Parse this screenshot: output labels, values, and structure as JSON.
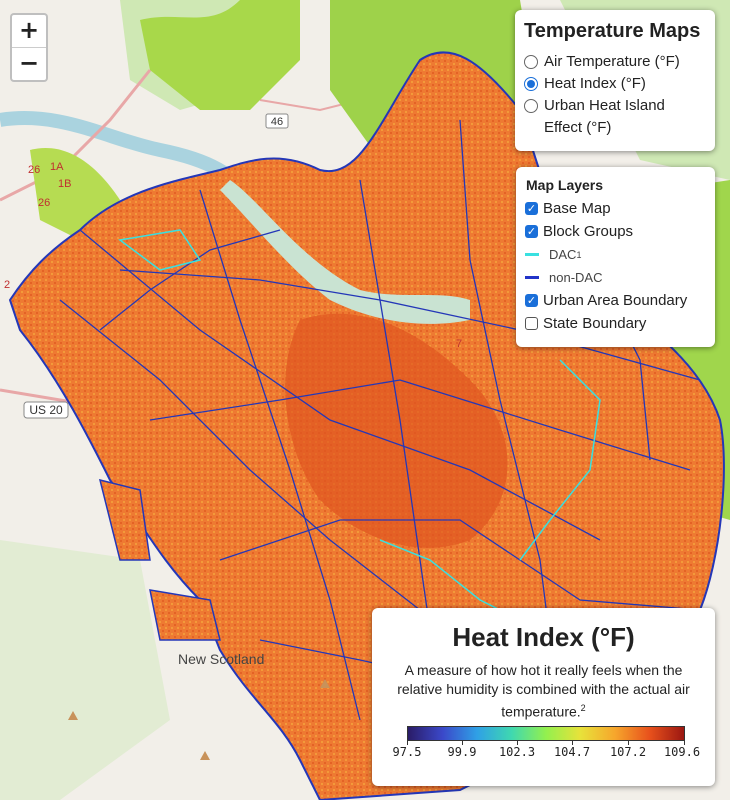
{
  "map": {
    "labels": [
      {
        "id": "rt46",
        "text": "46"
      },
      {
        "id": "us20",
        "text": "US 20"
      },
      {
        "id": "new-scotland",
        "text": "New Scotland"
      },
      {
        "id": "e26",
        "text": "26"
      },
      {
        "id": "e1a",
        "text": "1A"
      },
      {
        "id": "e1b",
        "text": "1B"
      },
      {
        "id": "e26b",
        "text": "26"
      },
      {
        "id": "e2",
        "text": "2"
      },
      {
        "id": "e7",
        "text": "7"
      }
    ]
  },
  "zoom": {
    "in": "+",
    "out": "−"
  },
  "temperature_maps": {
    "title": "Temperature Maps",
    "options": [
      {
        "label": "Air Temperature (°F)",
        "selected": false
      },
      {
        "label": "Heat Index (°F)",
        "selected": true
      },
      {
        "label": "Urban Heat Island Effect (°F)",
        "selected": false
      }
    ]
  },
  "map_layers": {
    "title": "Map Layers",
    "base_map": {
      "label": "Base Map",
      "checked": true
    },
    "block_groups": {
      "label": "Block Groups",
      "checked": true
    },
    "dac": {
      "label": "DAC",
      "sup": "1",
      "color": "#39e0e0"
    },
    "non_dac": {
      "label": "non-DAC",
      "color": "#2233c8"
    },
    "urban_area_boundary": {
      "label": "Urban Area Boundary",
      "checked": true
    },
    "state_boundary": {
      "label": "State Boundary",
      "checked": false
    }
  },
  "legend": {
    "title": "Heat Index (°F)",
    "description": "A measure of how hot it really feels when the relative humidity is combined with the actual air temperature.",
    "footnote": "2",
    "ticks": [
      "97.5",
      "99.9",
      "102.3",
      "104.7",
      "107.2",
      "109.6"
    ],
    "range": [
      97.5,
      109.6
    ],
    "colors": [
      "#2a1c67",
      "#3b48c9",
      "#2fa0e6",
      "#3fd8b0",
      "#93f04e",
      "#e8e23a",
      "#f6a62c",
      "#e8511c",
      "#9b1711"
    ]
  }
}
